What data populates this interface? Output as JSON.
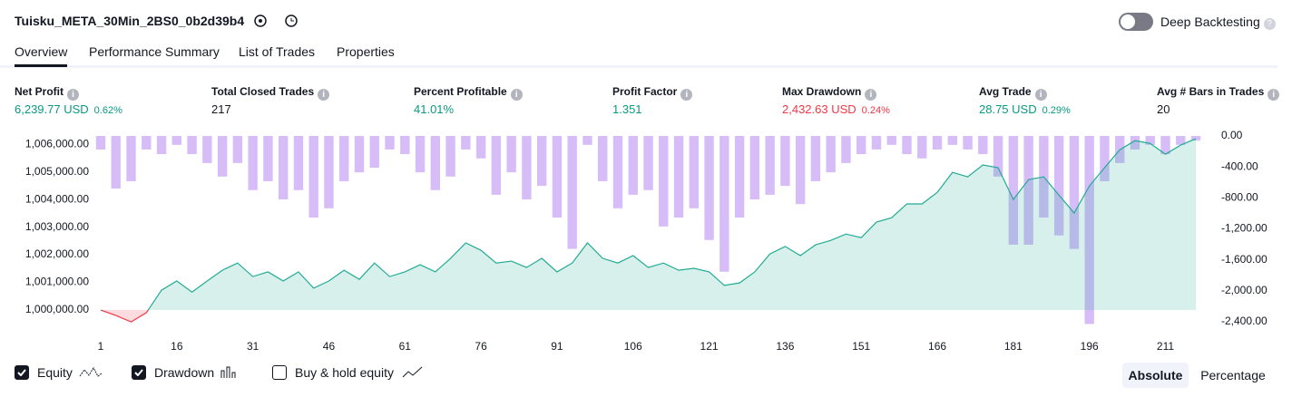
{
  "header": {
    "title": "Tuisku_META_30Min_2BS0_0b2d39b4",
    "deep_backtesting": "Deep Backtesting"
  },
  "tabs": [
    "Overview",
    "Performance Summary",
    "List of Trades",
    "Properties"
  ],
  "metrics": [
    {
      "label": "Net Profit",
      "value": "6,239.77 USD",
      "pct": "0.62%",
      "color": "#089981"
    },
    {
      "label": "Total Closed Trades",
      "value": "217",
      "color": "#131722"
    },
    {
      "label": "Percent Profitable",
      "value": "41.01%",
      "color": "#089981"
    },
    {
      "label": "Profit Factor",
      "value": "1.351",
      "color": "#089981"
    },
    {
      "label": "Max Drawdown",
      "value": "2,432.63 USD",
      "pct": "0.24%",
      "color": "#f23645"
    },
    {
      "label": "Avg Trade",
      "value": "28.75 USD",
      "pct": "0.29%",
      "color": "#089981"
    },
    {
      "label": "Avg # Bars in Trades",
      "value": "20",
      "color": "#131722"
    }
  ],
  "legend_extra": {
    "label": "Buy & hold equity",
    "checked": false
  },
  "view_modes": [
    "Absolute",
    "Percentage"
  ],
  "chart_data": {
    "type": "equity-drawdown",
    "x": [
      1,
      4,
      7,
      10,
      13,
      16,
      19,
      22,
      25,
      28,
      31,
      34,
      37,
      40,
      43,
      46,
      49,
      52,
      55,
      58,
      61,
      64,
      67,
      70,
      73,
      76,
      79,
      82,
      85,
      88,
      91,
      94,
      97,
      100,
      103,
      106,
      109,
      112,
      115,
      118,
      121,
      124,
      127,
      130,
      133,
      136,
      139,
      142,
      145,
      148,
      151,
      154,
      157,
      160,
      163,
      166,
      169,
      172,
      175,
      178,
      181,
      184,
      187,
      190,
      193,
      196,
      199,
      202,
      205,
      208,
      211,
      214,
      217
    ],
    "series": [
      {
        "name": "Equity",
        "type": "line",
        "color": "#22ab94",
        "negative_color": "#f23645",
        "checked": true,
        "values": [
          1000000,
          999800,
          999570,
          999900,
          1000720,
          1001050,
          1000650,
          1001050,
          1001440,
          1001700,
          1001210,
          1001380,
          1001050,
          1001380,
          1000790,
          1001050,
          1001440,
          1001110,
          1001700,
          1001210,
          1001380,
          1001640,
          1001380,
          1001870,
          1002430,
          1002160,
          1001700,
          1001770,
          1001540,
          1001870,
          1001380,
          1001700,
          1002430,
          1001870,
          1001700,
          1001970,
          1001540,
          1001700,
          1001440,
          1001510,
          1001380,
          1000890,
          1000980,
          1001380,
          1002030,
          1002300,
          1001970,
          1002360,
          1002520,
          1002750,
          1002620,
          1003180,
          1003340,
          1003840,
          1003840,
          1004260,
          1004980,
          1004820,
          1005250,
          1005150,
          1004000,
          1004720,
          1004820,
          1004160,
          1003510,
          1004490,
          1005150,
          1005800,
          1006130,
          1006030,
          1005640,
          1005970,
          1006200
        ]
      },
      {
        "name": "Drawdown",
        "type": "bar",
        "axis": "y2",
        "color": "#c9a7f5",
        "checked": true,
        "values": [
          -175,
          -680,
          -585,
          -175,
          -235,
          -115,
          -235,
          -350,
          -525,
          -350,
          -700,
          -585,
          -820,
          -700,
          -1055,
          -935,
          -585,
          -470,
          -410,
          -175,
          -235,
          -470,
          -700,
          -525,
          -175,
          -290,
          -760,
          -470,
          -820,
          -645,
          -1055,
          -1460,
          -115,
          -585,
          -935,
          -760,
          -700,
          -1170,
          -1055,
          -935,
          -1345,
          -1755,
          -1055,
          -820,
          -760,
          -645,
          -880,
          -585,
          -470,
          -350,
          -235,
          -175,
          -115,
          -235,
          -290,
          -175,
          -115,
          -175,
          -235,
          -525,
          -1405,
          -1405,
          -1055,
          -1285,
          -1460,
          -2430,
          -585,
          -350,
          -175,
          -115,
          -235,
          -115,
          -60
        ]
      }
    ],
    "xlim": [
      1,
      219.5
    ],
    "xticks": [
      1,
      16,
      31,
      46,
      61,
      76,
      91,
      106,
      121,
      136,
      151,
      166,
      181,
      196,
      211
    ],
    "ylim": [
      999410,
      1006300
    ],
    "yticks": [
      {
        "value": 1000000,
        "label": "1,000,000.00"
      },
      {
        "value": 1001000,
        "label": "1,001,000.00"
      },
      {
        "value": 1002000,
        "label": "1,002,000.00"
      },
      {
        "value": 1003000,
        "label": "1,003,000.00"
      },
      {
        "value": 1004000,
        "label": "1,004,000.00"
      },
      {
        "value": 1005000,
        "label": "1,005,000.00"
      },
      {
        "value": 1006000,
        "label": "1,006,000.00"
      }
    ],
    "y2lim": [
      -2460,
      0
    ],
    "y2ticks": [
      {
        "value": 0,
        "label": "0.00"
      },
      {
        "value": -400,
        "label": "-400.00"
      },
      {
        "value": -800,
        "label": "-800.00"
      },
      {
        "value": -1200,
        "label": "-1,200.00"
      },
      {
        "value": -1600,
        "label": "-1,600.00"
      },
      {
        "value": -2000,
        "label": "-2,000.00"
      },
      {
        "value": -2400,
        "label": "-2,400.00"
      }
    ],
    "baseline": 1000000
  }
}
